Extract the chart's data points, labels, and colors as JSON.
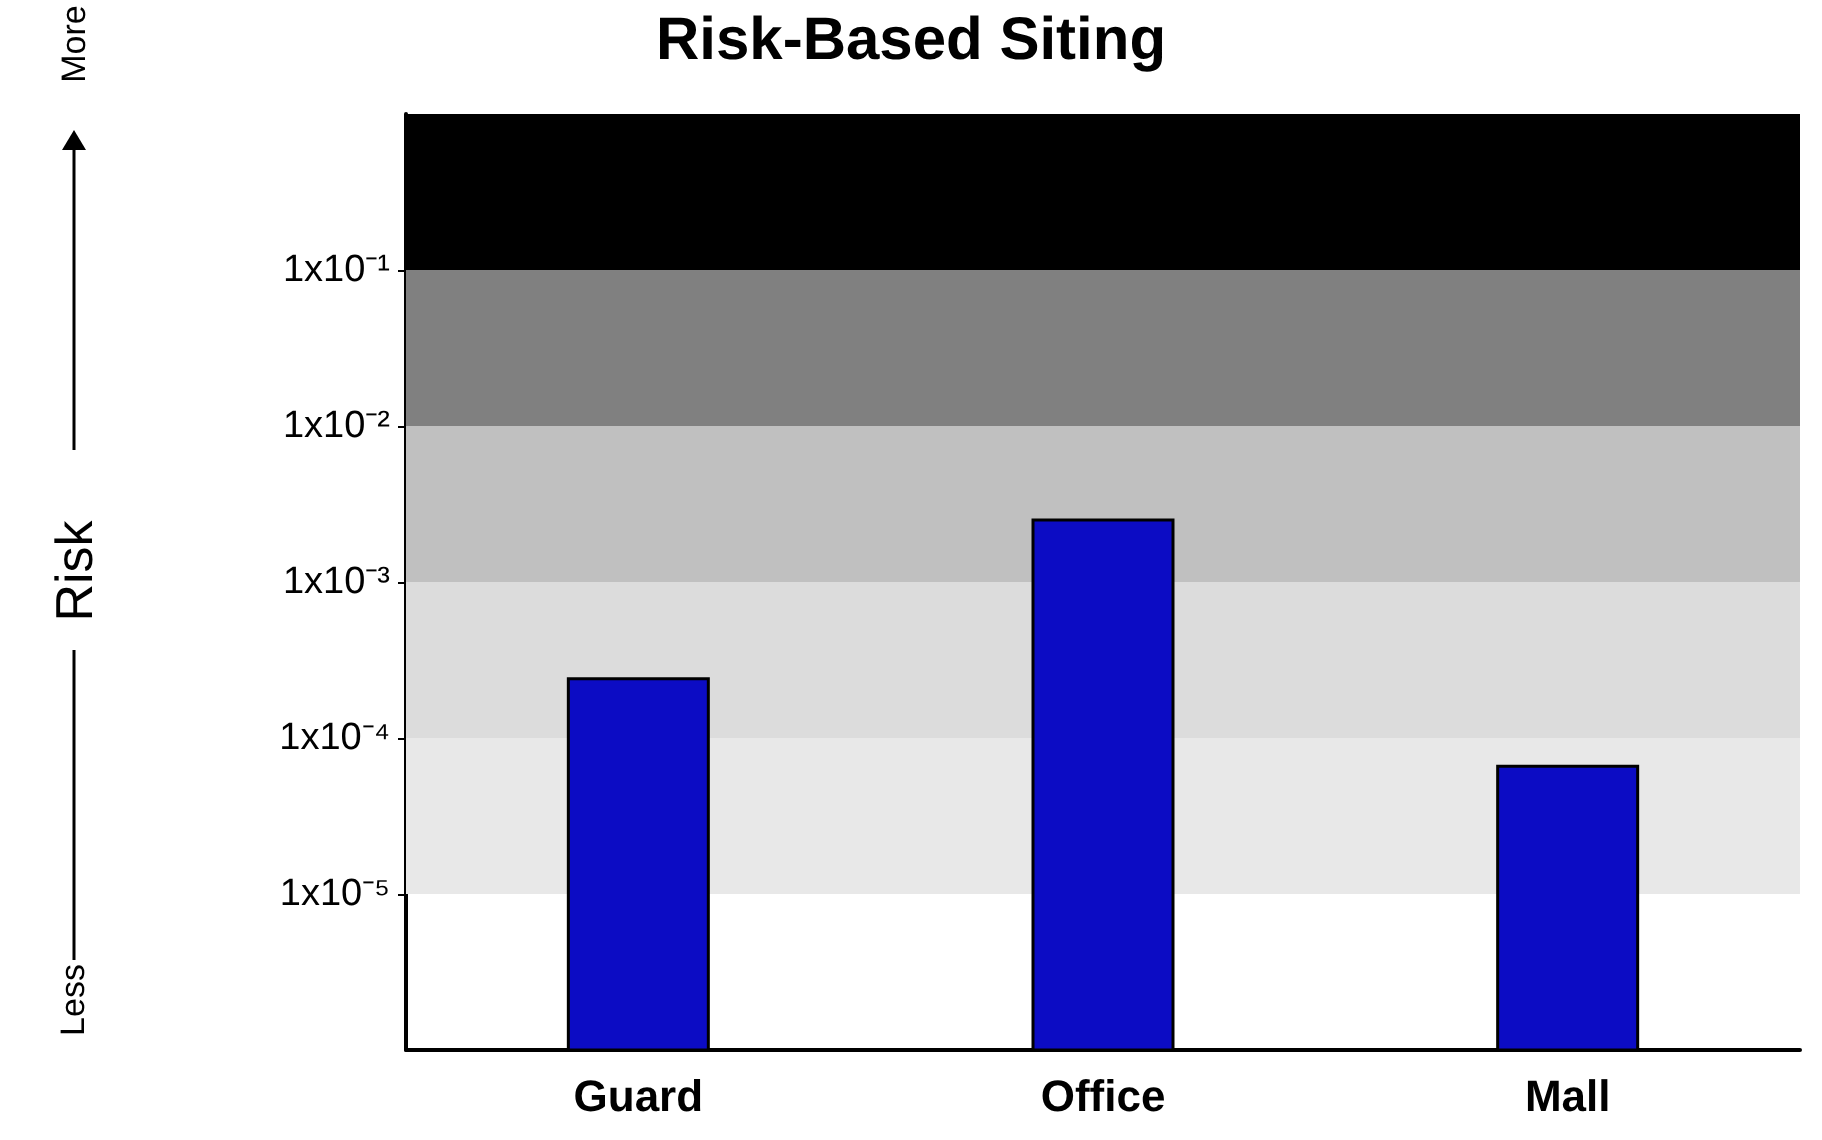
{
  "chart_data": {
    "type": "bar",
    "title": "Risk-Based Siting",
    "ylabel": "Risk",
    "annotations": [
      "More",
      "Less"
    ],
    "categories": [
      "Guard",
      "Office",
      "Mall"
    ],
    "values": [
      0.00024,
      0.0025,
      6.6e-05
    ],
    "color": "#0c0cc4",
    "log": "y",
    "ylim": [
      1e-06,
      1
    ],
    "yticks": [
      {
        "value": 1e-05,
        "label": "1x10⁻⁵"
      },
      {
        "value": 0.0001,
        "label": "1x10⁻⁴"
      },
      {
        "value": 0.001,
        "label": "1x10⁻³"
      },
      {
        "value": 0.01,
        "label": "1x10⁻²"
      },
      {
        "value": 0.1,
        "label": "1x10⁻¹"
      }
    ],
    "bands": [
      {
        "axis": "y",
        "from": 1e-05,
        "to": 0.0001,
        "color": "#e8e8e8"
      },
      {
        "axis": "y",
        "from": 0.0001,
        "to": 0.001,
        "color": "#dcdcdc"
      },
      {
        "axis": "y",
        "from": 0.001,
        "to": 0.01,
        "color": "#c0c0c0"
      },
      {
        "axis": "y",
        "from": 0.01,
        "to": 0.1,
        "color": "#808080"
      },
      {
        "axis": "y",
        "from": 0.1,
        "to": 1,
        "color": "#000000"
      }
    ],
    "grid": false
  }
}
